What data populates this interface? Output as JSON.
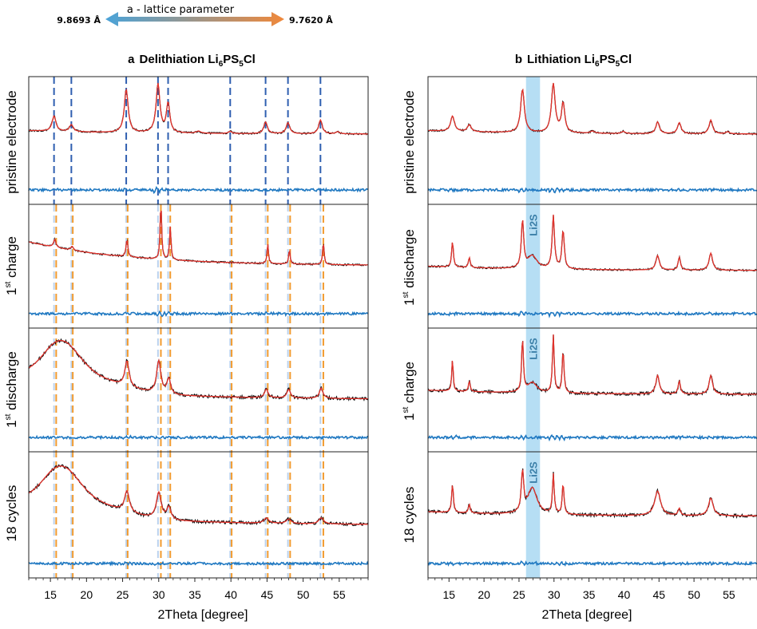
{
  "legend": {
    "title": "a - lattice parameter",
    "left_value": "9.8693 Å",
    "right_value": "9.7620 Å",
    "colors": {
      "start": "#4aa3d9",
      "end": "#f0883a"
    }
  },
  "colors": {
    "observed": "#111111",
    "fit": "#e3322b",
    "difference": "#1f78c1",
    "ref_line": "#2f5fb0",
    "shift_line": "#f29b2f",
    "li2s_band": "#a9d8f2",
    "li2s_text": "#3b7fa8"
  },
  "panels": {
    "a": {
      "letter": "a",
      "title_main": "Delithiation Li",
      "title_sub1": "6",
      "title_mid": "PS",
      "title_sub2": "5",
      "title_end": "Cl",
      "rows": [
        {
          "label": "pristine electrode"
        },
        {
          "label_pre": "1",
          "label_sup": "st",
          "label_post": " charge"
        },
        {
          "label_pre": "1",
          "label_sup": "st",
          "label_post": " discharge"
        },
        {
          "label": "18 cycles"
        }
      ],
      "xlabel": "2Theta [degree]"
    },
    "b": {
      "letter": "b",
      "title_main": "Lithiation Li",
      "title_sub1": "6",
      "title_mid": "PS",
      "title_sub2": "5",
      "title_end": "Cl",
      "rows": [
        {
          "label": "pristine electrode"
        },
        {
          "label_pre": "1",
          "label_sup": "st",
          "label_post": " discharge"
        },
        {
          "label_pre": "1",
          "label_sup": "st",
          "label_post": " charge"
        },
        {
          "label": "18 cycles"
        }
      ],
      "xlabel": "2Theta [degree]",
      "band_label": "Li2S"
    }
  },
  "chart_data": [
    {
      "type": "line",
      "title": "a Delithiation Li6PS5Cl",
      "xlabel": "2Theta [degree]",
      "xlim": [
        12,
        59
      ],
      "xticks": [
        15,
        20,
        25,
        30,
        35,
        40,
        45,
        50,
        55
      ],
      "reference_peaks": [
        15.5,
        17.9,
        25.5,
        29.9,
        31.3,
        39.9,
        44.8,
        47.9,
        52.4
      ],
      "shifted_peaks": [
        15.8,
        18.1,
        25.7,
        30.3,
        31.6,
        40.1,
        45.1,
        48.2,
        52.8
      ],
      "rows": [
        {
          "name": "pristine electrode",
          "baseline": 0.55,
          "hump": 0,
          "decay": 0.05,
          "peaks": [
            [
              15.5,
              0.22,
              0.32
            ],
            [
              17.9,
              0.1,
              0.32
            ],
            [
              25.5,
              0.62,
              0.32
            ],
            [
              29.9,
              0.7,
              0.32
            ],
            [
              31.3,
              0.42,
              0.28
            ],
            [
              35.5,
              0.03,
              0.4
            ],
            [
              39.9,
              0.03,
              0.3
            ],
            [
              44.8,
              0.17,
              0.3
            ],
            [
              47.9,
              0.16,
              0.3
            ],
            [
              52.4,
              0.2,
              0.3
            ],
            [
              54.8,
              0.03,
              0.3
            ]
          ]
        },
        {
          "name": "1st charge",
          "baseline": 0.38,
          "hump": 0,
          "decay": 0.3,
          "peaks": [
            [
              15.6,
              0.1,
              0.2
            ],
            [
              18.0,
              0.05,
              0.2
            ],
            [
              25.6,
              0.22,
              0.15
            ],
            [
              30.3,
              0.72,
              0.12
            ],
            [
              31.6,
              0.42,
              0.12
            ],
            [
              45.1,
              0.25,
              0.12
            ],
            [
              48.1,
              0.18,
              0.12
            ],
            [
              52.8,
              0.28,
              0.12
            ]
          ]
        },
        {
          "name": "1st discharge",
          "baseline": 0.24,
          "hump": 0.6,
          "decay": 0.2,
          "peaks": [
            [
              25.6,
              0.3,
              0.35
            ],
            [
              30.0,
              0.38,
              0.35
            ],
            [
              31.4,
              0.18,
              0.3
            ],
            [
              44.9,
              0.1,
              0.3
            ],
            [
              48.0,
              0.1,
              0.3
            ],
            [
              52.5,
              0.12,
              0.3
            ]
          ]
        },
        {
          "name": "18 cycles",
          "baseline": 0.24,
          "hump": 0.58,
          "decay": 0.2,
          "peaks": [
            [
              25.6,
              0.24,
              0.4
            ],
            [
              30.0,
              0.3,
              0.4
            ],
            [
              31.4,
              0.14,
              0.35
            ],
            [
              44.9,
              0.06,
              0.4
            ],
            [
              48.0,
              0.05,
              0.4
            ],
            [
              52.5,
              0.07,
              0.4
            ]
          ]
        }
      ]
    },
    {
      "type": "line",
      "title": "b Lithiation Li6PS5Cl",
      "xlabel": "2Theta [degree]",
      "xlim": [
        12,
        59
      ],
      "xticks": [
        15,
        20,
        25,
        30,
        35,
        40,
        45,
        50,
        55
      ],
      "band": [
        26.0,
        28.0
      ],
      "rows": [
        {
          "name": "pristine electrode",
          "baseline": 0.55,
          "hump": 0,
          "decay": 0.05,
          "peaks": [
            [
              15.5,
              0.22,
              0.32
            ],
            [
              17.9,
              0.1,
              0.32
            ],
            [
              25.5,
              0.62,
              0.32
            ],
            [
              29.9,
              0.7,
              0.32
            ],
            [
              31.3,
              0.42,
              0.28
            ],
            [
              35.5,
              0.03,
              0.4
            ],
            [
              39.9,
              0.03,
              0.3
            ],
            [
              44.8,
              0.17,
              0.3
            ],
            [
              47.9,
              0.16,
              0.3
            ],
            [
              52.4,
              0.2,
              0.3
            ],
            [
              54.8,
              0.03,
              0.3
            ]
          ]
        },
        {
          "name": "1st discharge",
          "baseline": 0.3,
          "hump": 0,
          "decay": 0.05,
          "peaks": [
            [
              15.5,
              0.3,
              0.15
            ],
            [
              17.9,
              0.12,
              0.15
            ],
            [
              25.5,
              0.55,
              0.2
            ],
            [
              26.9,
              0.15,
              0.8
            ],
            [
              29.9,
              0.62,
              0.2
            ],
            [
              31.3,
              0.45,
              0.2
            ],
            [
              44.8,
              0.17,
              0.3
            ],
            [
              47.9,
              0.15,
              0.2
            ],
            [
              52.4,
              0.2,
              0.3
            ]
          ]
        },
        {
          "name": "1st charge",
          "baseline": 0.3,
          "hump": 0,
          "decay": 0.05,
          "peaks": [
            [
              15.5,
              0.38,
              0.12
            ],
            [
              17.9,
              0.12,
              0.15
            ],
            [
              25.5,
              0.62,
              0.15
            ],
            [
              26.9,
              0.12,
              0.8
            ],
            [
              29.9,
              0.68,
              0.15
            ],
            [
              31.3,
              0.5,
              0.15
            ],
            [
              44.8,
              0.22,
              0.3
            ],
            [
              47.9,
              0.15,
              0.2
            ],
            [
              52.4,
              0.22,
              0.3
            ]
          ]
        },
        {
          "name": "18 cycles",
          "baseline": 0.34,
          "hump": 0,
          "decay": 0.05,
          "peaks": [
            [
              15.5,
              0.32,
              0.15
            ],
            [
              17.9,
              0.1,
              0.15
            ],
            [
              25.5,
              0.45,
              0.2
            ],
            [
              26.9,
              0.3,
              0.8
            ],
            [
              29.9,
              0.45,
              0.15
            ],
            [
              31.3,
              0.35,
              0.15
            ],
            [
              44.8,
              0.28,
              0.5
            ],
            [
              47.9,
              0.08,
              0.2
            ],
            [
              52.4,
              0.2,
              0.4
            ]
          ]
        }
      ]
    }
  ]
}
